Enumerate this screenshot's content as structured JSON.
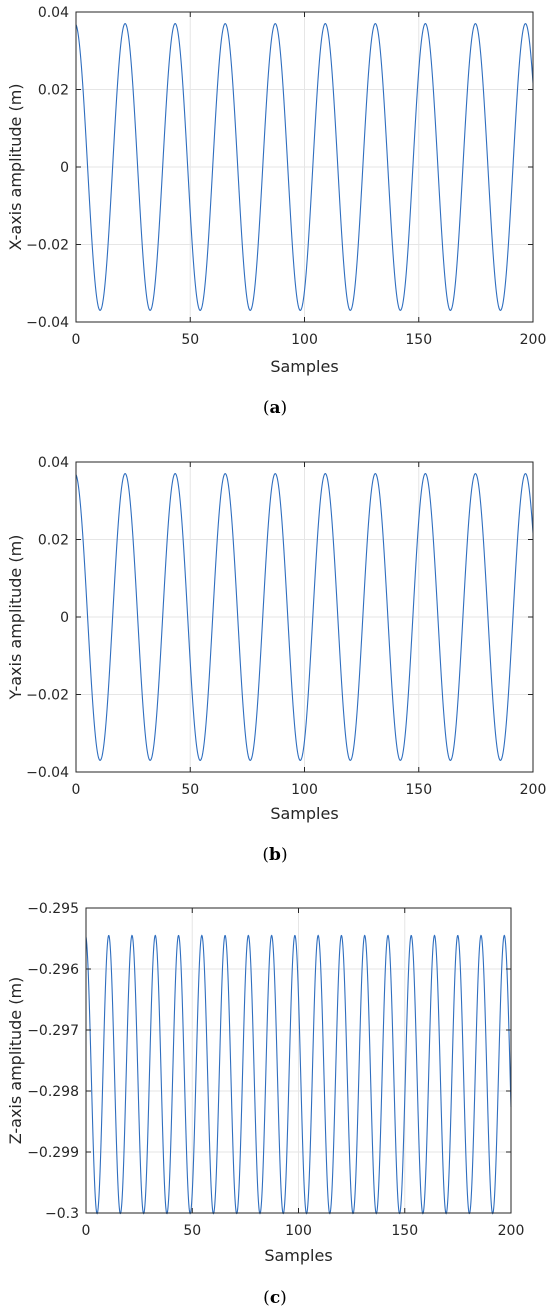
{
  "chart_data": [
    {
      "type": "line",
      "caption": "(a)",
      "caption_letter": "a",
      "xlabel": "Samples",
      "ylabel": "X-axis amplitude (m)",
      "xlim": [
        0,
        200
      ],
      "ylim": [
        -0.04,
        0.04
      ],
      "xticks": [
        0,
        50,
        100,
        150,
        200
      ],
      "xtick_labels": [
        "0",
        "50",
        "100",
        "150",
        "200"
      ],
      "yticks": [
        0.04,
        0.02,
        0,
        -0.02,
        -0.04
      ],
      "ytick_labels": [
        "0.04",
        "0.02",
        "0",
        "-0.02",
        "-0.04"
      ],
      "grid": true,
      "line_color": "#2f6ebf",
      "series": [
        {
          "function": "sine",
          "x_start": 0,
          "x_end": 200,
          "amplitude": 0.037,
          "offset": 0,
          "period": 21.9,
          "peak_x": 21.5
        }
      ]
    },
    {
      "type": "line",
      "caption": "(b)",
      "caption_letter": "b",
      "xlabel": "Samples",
      "ylabel": "Y-axis amplitude (m)",
      "xlim": [
        0,
        200
      ],
      "ylim": [
        -0.04,
        0.04
      ],
      "xticks": [
        0,
        50,
        100,
        150,
        200
      ],
      "xtick_labels": [
        "0",
        "50",
        "100",
        "150",
        "200"
      ],
      "yticks": [
        0.04,
        0.02,
        0,
        -0.02,
        -0.04
      ],
      "ytick_labels": [
        "0.04",
        "0.02",
        "0",
        "-0.02",
        "-0.04"
      ],
      "grid": true,
      "line_color": "#2f6ebf",
      "series": [
        {
          "function": "sine",
          "x_start": 0,
          "x_end": 200,
          "amplitude": 0.037,
          "offset": 0,
          "period": 21.9,
          "peak_x": 21.5
        }
      ]
    },
    {
      "type": "line",
      "caption": "(c)",
      "caption_letter": "c",
      "xlabel": "Samples",
      "ylabel": "Z-axis amplitude (m)",
      "xlim": [
        0,
        200
      ],
      "ylim": [
        -0.3,
        -0.295
      ],
      "xticks": [
        0,
        50,
        100,
        150,
        200
      ],
      "xtick_labels": [
        "0",
        "50",
        "100",
        "150",
        "200"
      ],
      "yticks": [
        -0.295,
        -0.296,
        -0.297,
        -0.298,
        -0.299,
        -0.3
      ],
      "ytick_labels": [
        "-0.295",
        "-0.296",
        "-0.297",
        "-0.298",
        "-0.299",
        "-0.3"
      ],
      "grid": true,
      "line_color": "#2f6ebf",
      "series": [
        {
          "function": "sine",
          "x_start": 0,
          "x_end": 200,
          "amplitude": 0.00228,
          "offset": -0.29773,
          "period": 10.95,
          "peak_x": 10.7
        }
      ]
    }
  ]
}
